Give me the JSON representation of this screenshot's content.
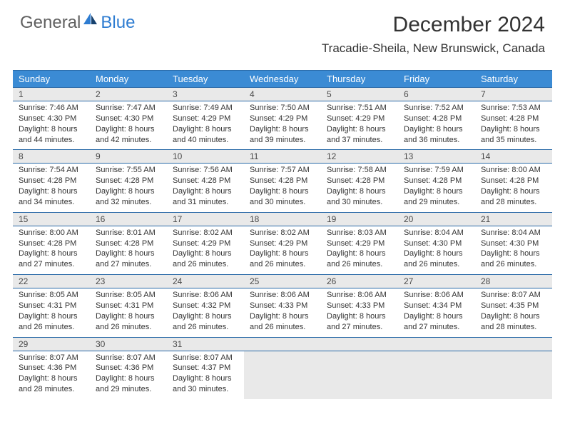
{
  "logo": {
    "general": "General",
    "blue": "Blue"
  },
  "title": "December 2024",
  "location": "Tracadie-Sheila, New Brunswick, Canada",
  "weekdays": [
    "Sunday",
    "Monday",
    "Tuesday",
    "Wednesday",
    "Thursday",
    "Friday",
    "Saturday"
  ],
  "colors": {
    "header_bg": "#3b8bd4",
    "header_text": "#ffffff",
    "border": "#2a6aa8",
    "daynum_bg": "#e9e9e9",
    "text": "#333333",
    "logo_gray": "#606060",
    "logo_blue": "#2e7cd1"
  },
  "days": [
    {
      "n": "1",
      "sunrise": "7:46 AM",
      "sunset": "4:30 PM",
      "daylight": "8 hours and 44 minutes."
    },
    {
      "n": "2",
      "sunrise": "7:47 AM",
      "sunset": "4:30 PM",
      "daylight": "8 hours and 42 minutes."
    },
    {
      "n": "3",
      "sunrise": "7:49 AM",
      "sunset": "4:29 PM",
      "daylight": "8 hours and 40 minutes."
    },
    {
      "n": "4",
      "sunrise": "7:50 AM",
      "sunset": "4:29 PM",
      "daylight": "8 hours and 39 minutes."
    },
    {
      "n": "5",
      "sunrise": "7:51 AM",
      "sunset": "4:29 PM",
      "daylight": "8 hours and 37 minutes."
    },
    {
      "n": "6",
      "sunrise": "7:52 AM",
      "sunset": "4:28 PM",
      "daylight": "8 hours and 36 minutes."
    },
    {
      "n": "7",
      "sunrise": "7:53 AM",
      "sunset": "4:28 PM",
      "daylight": "8 hours and 35 minutes."
    },
    {
      "n": "8",
      "sunrise": "7:54 AM",
      "sunset": "4:28 PM",
      "daylight": "8 hours and 34 minutes."
    },
    {
      "n": "9",
      "sunrise": "7:55 AM",
      "sunset": "4:28 PM",
      "daylight": "8 hours and 32 minutes."
    },
    {
      "n": "10",
      "sunrise": "7:56 AM",
      "sunset": "4:28 PM",
      "daylight": "8 hours and 31 minutes."
    },
    {
      "n": "11",
      "sunrise": "7:57 AM",
      "sunset": "4:28 PM",
      "daylight": "8 hours and 30 minutes."
    },
    {
      "n": "12",
      "sunrise": "7:58 AM",
      "sunset": "4:28 PM",
      "daylight": "8 hours and 30 minutes."
    },
    {
      "n": "13",
      "sunrise": "7:59 AM",
      "sunset": "4:28 PM",
      "daylight": "8 hours and 29 minutes."
    },
    {
      "n": "14",
      "sunrise": "8:00 AM",
      "sunset": "4:28 PM",
      "daylight": "8 hours and 28 minutes."
    },
    {
      "n": "15",
      "sunrise": "8:00 AM",
      "sunset": "4:28 PM",
      "daylight": "8 hours and 27 minutes."
    },
    {
      "n": "16",
      "sunrise": "8:01 AM",
      "sunset": "4:28 PM",
      "daylight": "8 hours and 27 minutes."
    },
    {
      "n": "17",
      "sunrise": "8:02 AM",
      "sunset": "4:29 PM",
      "daylight": "8 hours and 26 minutes."
    },
    {
      "n": "18",
      "sunrise": "8:02 AM",
      "sunset": "4:29 PM",
      "daylight": "8 hours and 26 minutes."
    },
    {
      "n": "19",
      "sunrise": "8:03 AM",
      "sunset": "4:29 PM",
      "daylight": "8 hours and 26 minutes."
    },
    {
      "n": "20",
      "sunrise": "8:04 AM",
      "sunset": "4:30 PM",
      "daylight": "8 hours and 26 minutes."
    },
    {
      "n": "21",
      "sunrise": "8:04 AM",
      "sunset": "4:30 PM",
      "daylight": "8 hours and 26 minutes."
    },
    {
      "n": "22",
      "sunrise": "8:05 AM",
      "sunset": "4:31 PM",
      "daylight": "8 hours and 26 minutes."
    },
    {
      "n": "23",
      "sunrise": "8:05 AM",
      "sunset": "4:31 PM",
      "daylight": "8 hours and 26 minutes."
    },
    {
      "n": "24",
      "sunrise": "8:06 AM",
      "sunset": "4:32 PM",
      "daylight": "8 hours and 26 minutes."
    },
    {
      "n": "25",
      "sunrise": "8:06 AM",
      "sunset": "4:33 PM",
      "daylight": "8 hours and 26 minutes."
    },
    {
      "n": "26",
      "sunrise": "8:06 AM",
      "sunset": "4:33 PM",
      "daylight": "8 hours and 27 minutes."
    },
    {
      "n": "27",
      "sunrise": "8:06 AM",
      "sunset": "4:34 PM",
      "daylight": "8 hours and 27 minutes."
    },
    {
      "n": "28",
      "sunrise": "8:07 AM",
      "sunset": "4:35 PM",
      "daylight": "8 hours and 28 minutes."
    },
    {
      "n": "29",
      "sunrise": "8:07 AM",
      "sunset": "4:36 PM",
      "daylight": "8 hours and 28 minutes."
    },
    {
      "n": "30",
      "sunrise": "8:07 AM",
      "sunset": "4:36 PM",
      "daylight": "8 hours and 29 minutes."
    },
    {
      "n": "31",
      "sunrise": "8:07 AM",
      "sunset": "4:37 PM",
      "daylight": "8 hours and 30 minutes."
    }
  ],
  "labels": {
    "sunrise": "Sunrise: ",
    "sunset": "Sunset: ",
    "daylight": "Daylight: "
  },
  "grid": {
    "columns": 7,
    "rows": 5,
    "start_weekday": 0,
    "total_days": 31
  }
}
